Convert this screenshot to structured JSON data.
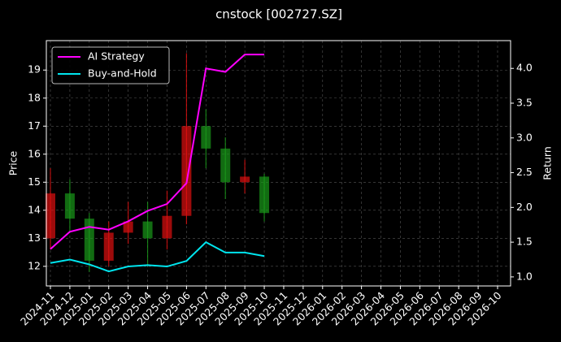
{
  "chart_data": {
    "type": "candlestick",
    "title": "cnstock [002727.SZ]",
    "ylabel": "Price",
    "y2label": "Return",
    "x": [
      "2024-11",
      "2024-12",
      "2025-01",
      "2025-02",
      "2025-03",
      "2025-04",
      "2025-05",
      "2025-06",
      "2025-07",
      "2025-08",
      "2025-09",
      "2025-10"
    ],
    "open": [
      13.0,
      14.6,
      13.7,
      12.2,
      13.2,
      13.6,
      13.0,
      13.8,
      17.0,
      16.2,
      15.0,
      15.2
    ],
    "high": [
      15.5,
      15.1,
      13.9,
      13.6,
      14.3,
      14.3,
      14.7,
      19.6,
      17.6,
      16.6,
      15.8,
      15.3
    ],
    "low": [
      12.6,
      13.2,
      11.8,
      12.0,
      12.8,
      12.0,
      12.6,
      13.5,
      15.5,
      14.4,
      14.6,
      13.6
    ],
    "close": [
      14.6,
      13.7,
      12.2,
      13.2,
      13.6,
      13.0,
      13.8,
      17.0,
      16.2,
      15.0,
      15.2,
      13.9
    ],
    "up_color": "#e01010",
    "down_color": "#1a9a1a",
    "series": [
      {
        "name": "AI Strategy",
        "color": "#ff00ff",
        "axis": "y2",
        "values": [
          1.4,
          1.65,
          1.72,
          1.68,
          1.8,
          1.95,
          2.05,
          2.35,
          4.0,
          3.95,
          4.2,
          4.2
        ]
      },
      {
        "name": "Buy-and-Hold",
        "color": "#00e5ee",
        "axis": "y2",
        "values": [
          1.2,
          1.25,
          1.18,
          1.08,
          1.15,
          1.17,
          1.15,
          1.23,
          1.5,
          1.35,
          1.35,
          1.3
        ]
      }
    ],
    "ylim": [
      11.3,
      20.05
    ],
    "yticks": [
      12,
      13,
      14,
      15,
      16,
      17,
      18,
      19
    ],
    "y2lim": [
      0.87,
      4.4
    ],
    "y2ticks": [
      {
        "value": 1,
        "label": "1.0"
      },
      {
        "value": 1.5,
        "label": "1.5"
      },
      {
        "value": 2,
        "label": "2.0"
      },
      {
        "value": 2.5,
        "label": "2.5"
      },
      {
        "value": 3,
        "label": "3.0"
      },
      {
        "value": 3.5,
        "label": "3.5"
      },
      {
        "value": 4,
        "label": "4.0"
      }
    ],
    "xlim": [
      "2024-11",
      "2026-10"
    ],
    "xticks": [
      "2024-11",
      "2024-12",
      "2025-01",
      "2025-02",
      "2025-03",
      "2025-04",
      "2025-05",
      "2025-06",
      "2025-07",
      "2025-08",
      "2025-09",
      "2025-10",
      "2025-11",
      "2025-12",
      "2026-01",
      "2026-02",
      "2026-03",
      "2026-04",
      "2026-05",
      "2026-06",
      "2026-07",
      "2026-08",
      "2026-09",
      "2026-10"
    ],
    "grid": true,
    "legend": "upper left"
  }
}
